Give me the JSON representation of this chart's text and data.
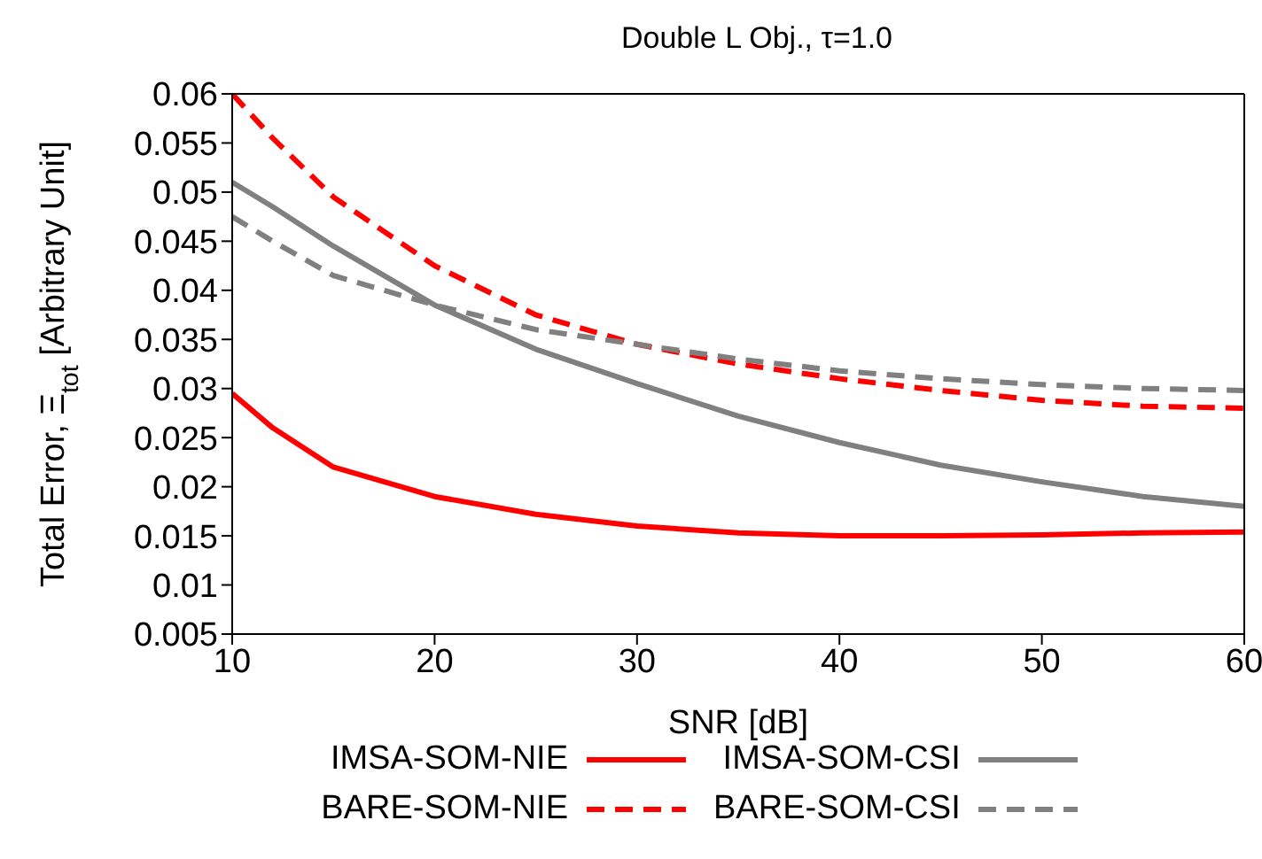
{
  "chart_data": {
    "type": "line",
    "title": "Double L Obj., τ=1.0",
    "xlabel": "SNR [dB]",
    "ylabel": "Total Error, Ξ$_{tot}$ [Arbitrary Unit]",
    "x": [
      10,
      12,
      15,
      20,
      25,
      30,
      35,
      40,
      45,
      50,
      55,
      60
    ],
    "series": [
      {
        "name": "IMSA-SOM-NIE",
        "color": "#ff0000",
        "line_style": "solid",
        "values": [
          0.0295,
          0.026,
          0.022,
          0.019,
          0.0172,
          0.016,
          0.0153,
          0.015,
          0.015,
          0.0151,
          0.0153,
          0.0154
        ]
      },
      {
        "name": "IMSA-SOM-CSI",
        "color": "#808080",
        "line_style": "solid",
        "values": [
          0.051,
          0.0485,
          0.0445,
          0.0385,
          0.034,
          0.0305,
          0.0272,
          0.0245,
          0.0222,
          0.0205,
          0.019,
          0.018
        ]
      },
      {
        "name": "BARE-SOM-NIE",
        "color": "#ff0000",
        "line_style": "dashed",
        "values": [
          0.06,
          0.0555,
          0.0495,
          0.0425,
          0.0375,
          0.0345,
          0.0325,
          0.031,
          0.0298,
          0.0288,
          0.0282,
          0.028
        ]
      },
      {
        "name": "BARE-SOM-CSI",
        "color": "#808080",
        "line_style": "dashed",
        "values": [
          0.0475,
          0.045,
          0.0415,
          0.0385,
          0.036,
          0.0345,
          0.033,
          0.0318,
          0.031,
          0.0304,
          0.03,
          0.0298
        ]
      }
    ],
    "xlim": [
      10,
      60
    ],
    "xticks": [
      10,
      20,
      30,
      40,
      50,
      60
    ],
    "ylim": [
      0.005,
      0.06
    ],
    "yticks": [
      0.005,
      0.01,
      0.015,
      0.02,
      0.025,
      0.03,
      0.035,
      0.04,
      0.045,
      0.05,
      0.055,
      0.06
    ],
    "grid": false,
    "legend": "bottom",
    "marker": "none"
  }
}
